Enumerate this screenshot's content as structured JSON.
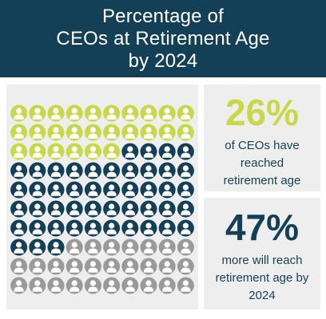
{
  "header": {
    "title_lines": [
      "Percentage of",
      "CEOs at Retirement Age",
      "by 2024"
    ]
  },
  "chart_data": {
    "type": "pictogram",
    "total_icons": 100,
    "columns": 10,
    "rows": 10,
    "segments": [
      {
        "count": 26,
        "color": "#c8d84a"
      },
      {
        "count": 47,
        "color": "#133f57"
      },
      {
        "count": 27,
        "color": "#9a9a9a"
      }
    ],
    "icon": "person-icon"
  },
  "stats": [
    {
      "value": "26%",
      "lines": [
        "of CEOs have",
        "reached",
        "retirement age"
      ],
      "color": "#c8d84a"
    },
    {
      "value": "47%",
      "lines": [
        "more will reach",
        "retirement age by",
        "2024"
      ],
      "color": "#133f57"
    }
  ],
  "colors": {
    "header_bg": "#133f57",
    "panel_bg": "#eeeeee",
    "lime": "#c8d84a",
    "navy": "#133f57",
    "gray": "#9a9a9a"
  }
}
